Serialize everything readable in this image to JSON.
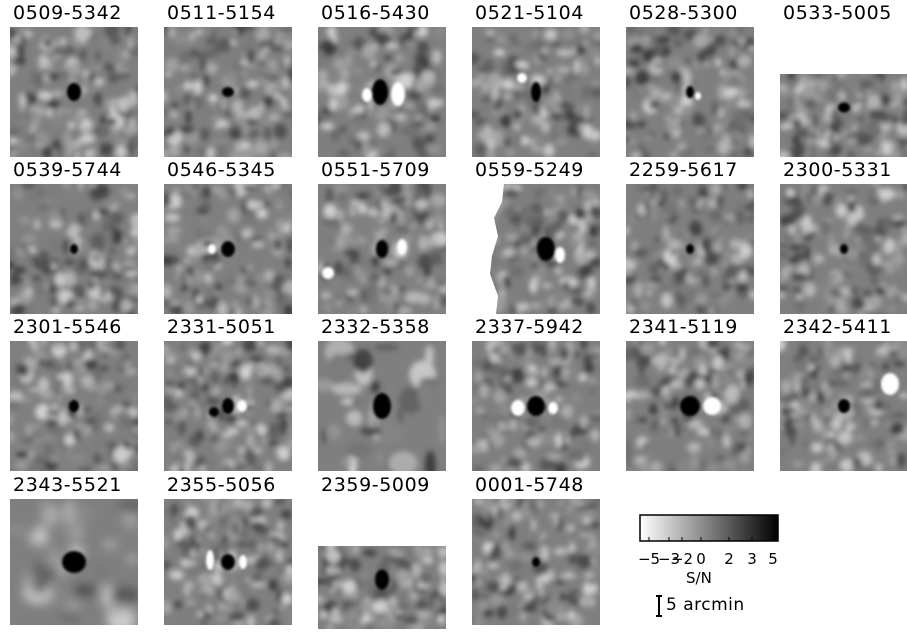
{
  "figure": {
    "panels": [
      {
        "label": "0509-5342",
        "variant": "full",
        "blobs": [
          {
            "kind": "dark",
            "dx": 0,
            "dy": 0,
            "rx": 7,
            "ry": 9
          }
        ]
      },
      {
        "label": "0511-5154",
        "variant": "full",
        "blobs": [
          {
            "kind": "dark",
            "dx": 0,
            "dy": 0,
            "rx": 6,
            "ry": 5
          }
        ]
      },
      {
        "label": "0516-5430",
        "variant": "full",
        "blobs": [
          {
            "kind": "dark",
            "dx": -2,
            "dy": 0,
            "rx": 8,
            "ry": 13
          },
          {
            "kind": "bright",
            "dx": 16,
            "dy": 2,
            "rx": 7,
            "ry": 12
          },
          {
            "kind": "bright",
            "dx": -15,
            "dy": 3,
            "rx": 5,
            "ry": 7
          }
        ]
      },
      {
        "label": "0521-5104",
        "variant": "full",
        "blobs": [
          {
            "kind": "dark",
            "dx": 0,
            "dy": 0,
            "rx": 5,
            "ry": 10
          },
          {
            "kind": "bright",
            "dx": -14,
            "dy": -14,
            "rx": 5,
            "ry": 5
          }
        ]
      },
      {
        "label": "0528-5300",
        "variant": "full",
        "blobs": [
          {
            "kind": "dark",
            "dx": 0,
            "dy": 0,
            "rx": 4,
            "ry": 6
          },
          {
            "kind": "bright",
            "dx": 8,
            "dy": 4,
            "rx": 3,
            "ry": 4
          }
        ]
      },
      {
        "label": "0533-5005",
        "variant": "short",
        "blobs": [
          {
            "kind": "dark",
            "dx": 0,
            "dy": 0,
            "rx": 6,
            "ry": 5
          }
        ]
      },
      {
        "label": "0539-5744",
        "variant": "full",
        "blobs": [
          {
            "kind": "dark",
            "dx": 0,
            "dy": 0,
            "rx": 4,
            "ry": 5
          }
        ]
      },
      {
        "label": "0546-5345",
        "variant": "full",
        "blobs": [
          {
            "kind": "dark",
            "dx": 0,
            "dy": 0,
            "rx": 7,
            "ry": 8
          },
          {
            "kind": "bright",
            "dx": -16,
            "dy": 0,
            "rx": 4,
            "ry": 5
          }
        ]
      },
      {
        "label": "0551-5709",
        "variant": "full",
        "blobs": [
          {
            "kind": "dark",
            "dx": 0,
            "dy": 0,
            "rx": 6,
            "ry": 9
          },
          {
            "kind": "bright",
            "dx": 20,
            "dy": -2,
            "rx": 5,
            "ry": 8
          },
          {
            "kind": "bright",
            "dx": -54,
            "dy": 24,
            "rx": 6,
            "ry": 6
          }
        ]
      },
      {
        "label": "0559-5249",
        "variant": "edge",
        "blobs": [
          {
            "kind": "dark",
            "dx": 0,
            "dy": 0,
            "rx": 9,
            "ry": 12
          },
          {
            "kind": "bright",
            "dx": 14,
            "dy": 6,
            "rx": 5,
            "ry": 8
          }
        ]
      },
      {
        "label": "2259-5617",
        "variant": "full",
        "blobs": [
          {
            "kind": "dark",
            "dx": 0,
            "dy": 0,
            "rx": 4,
            "ry": 5
          }
        ]
      },
      {
        "label": "2300-5331",
        "variant": "full",
        "blobs": [
          {
            "kind": "dark",
            "dx": 0,
            "dy": 0,
            "rx": 4,
            "ry": 5
          }
        ]
      },
      {
        "label": "2301-5546",
        "variant": "full",
        "blobs": [
          {
            "kind": "dark",
            "dx": 0,
            "dy": 0,
            "rx": 5,
            "ry": 6
          }
        ]
      },
      {
        "label": "2331-5051",
        "variant": "full",
        "blobs": [
          {
            "kind": "dark",
            "dx": 0,
            "dy": 0,
            "rx": 6,
            "ry": 8
          },
          {
            "kind": "dark",
            "dx": -14,
            "dy": 6,
            "rx": 5,
            "ry": 5
          },
          {
            "kind": "bright",
            "dx": 14,
            "dy": 0,
            "rx": 5,
            "ry": 6
          }
        ]
      },
      {
        "label": "2332-5358",
        "variant": "full",
        "blobs": [
          {
            "kind": "dark",
            "dx": 0,
            "dy": 0,
            "rx": 9,
            "ry": 13
          }
        ]
      },
      {
        "label": "2337-5942",
        "variant": "full",
        "blobs": [
          {
            "kind": "dark",
            "dx": 0,
            "dy": 0,
            "rx": 9,
            "ry": 10
          },
          {
            "kind": "bright",
            "dx": -18,
            "dy": 2,
            "rx": 7,
            "ry": 8
          },
          {
            "kind": "bright",
            "dx": 17,
            "dy": 2,
            "rx": 5,
            "ry": 6
          }
        ]
      },
      {
        "label": "2341-5119",
        "variant": "full",
        "blobs": [
          {
            "kind": "dark",
            "dx": 0,
            "dy": 0,
            "rx": 10,
            "ry": 10
          },
          {
            "kind": "bright",
            "dx": 22,
            "dy": 0,
            "rx": 9,
            "ry": 9
          }
        ]
      },
      {
        "label": "2342-5411",
        "variant": "full",
        "blobs": [
          {
            "kind": "dark",
            "dx": 0,
            "dy": 0,
            "rx": 6,
            "ry": 7
          },
          {
            "kind": "bright",
            "dx": 46,
            "dy": -22,
            "rx": 9,
            "ry": 11
          }
        ]
      },
      {
        "label": "2343-5521",
        "variant": "full",
        "blobs": [
          {
            "kind": "dark",
            "dx": 0,
            "dy": 0,
            "rx": 12,
            "ry": 11
          }
        ]
      },
      {
        "label": "2355-5056",
        "variant": "full",
        "blobs": [
          {
            "kind": "dark",
            "dx": 0,
            "dy": 0,
            "rx": 7,
            "ry": 8
          },
          {
            "kind": "bright",
            "dx": -18,
            "dy": -2,
            "rx": 4,
            "ry": 10
          },
          {
            "kind": "bright",
            "dx": 15,
            "dy": 0,
            "rx": 4,
            "ry": 7
          }
        ]
      },
      {
        "label": "2359-5009",
        "variant": "short",
        "blobs": [
          {
            "kind": "dark",
            "dx": 0,
            "dy": 0,
            "rx": 7,
            "ry": 10
          }
        ]
      },
      {
        "label": "0001-5748",
        "variant": "full",
        "blobs": [
          {
            "kind": "dark",
            "dx": 0,
            "dy": 0,
            "rx": 4,
            "ry": 5
          }
        ]
      }
    ]
  },
  "colorbar": {
    "tick_labels": [
      "−5",
      "−3",
      "−2",
      "0",
      "2",
      "3",
      "5"
    ],
    "label": "S/N",
    "gradient_from": "#ffffff",
    "gradient_to": "#000000"
  },
  "scale_bar": {
    "label": "5 arcmin"
  }
}
